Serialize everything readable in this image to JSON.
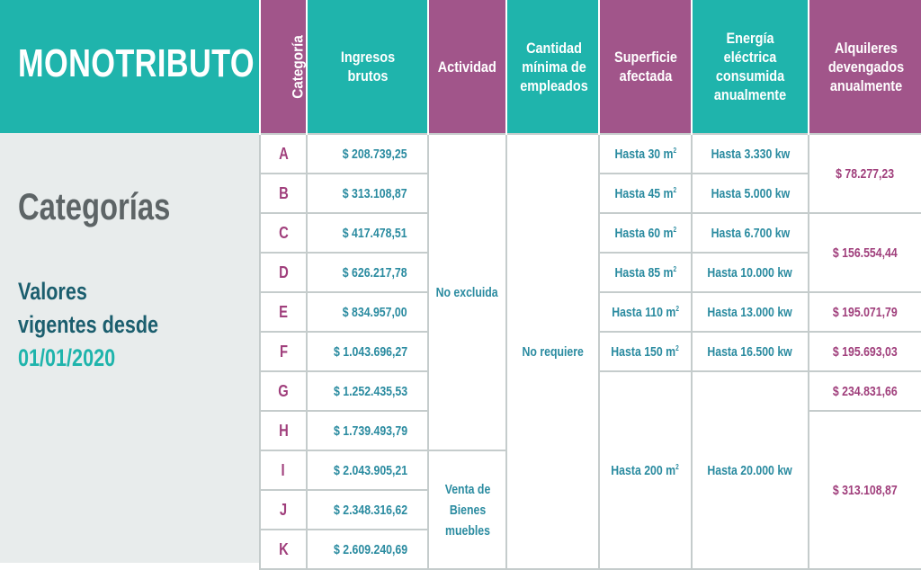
{
  "brand": "MONOTRIBUTO",
  "section_title": "Categorías",
  "validity": {
    "line1": "Valores",
    "line2": "vigentes desde",
    "date": "01/01/2020"
  },
  "colors": {
    "teal": "#1fb4ac",
    "purple": "#a1558a",
    "teal_text": "#2a8ba0",
    "purple_text": "#a03f7c"
  },
  "headers": {
    "categoria": "Categoría",
    "ingresos": "Ingresos brutos",
    "actividad": "Actividad",
    "empleados": "Cantidad mínima de empleados",
    "superficie": "Superficie afectada",
    "energia": "Energía eléctrica consumida anualmente",
    "alquileres": "Alquileres devengados anualmente"
  },
  "rows": [
    {
      "categoria": "A",
      "ingresos": "$ 208.739,25"
    },
    {
      "categoria": "B",
      "ingresos": "$ 313.108,87"
    },
    {
      "categoria": "C",
      "ingresos": "$ 417.478,51"
    },
    {
      "categoria": "D",
      "ingresos": "$ 626.217,78"
    },
    {
      "categoria": "E",
      "ingresos": "$ 834.957,00"
    },
    {
      "categoria": "F",
      "ingresos": "$ 1.043.696,27"
    },
    {
      "categoria": "G",
      "ingresos": "$ 1.252.435,53"
    },
    {
      "categoria": "H",
      "ingresos": "$ 1.739.493,79"
    },
    {
      "categoria": "I",
      "ingresos": "$ 2.043.905,21"
    },
    {
      "categoria": "J",
      "ingresos": "$ 2.348.316,62"
    },
    {
      "categoria": "K",
      "ingresos": "$ 2.609.240,69"
    }
  ],
  "actividad_groups": [
    {
      "label": "No excluida",
      "categories": [
        "A",
        "B",
        "C",
        "D",
        "E",
        "F",
        "G",
        "H"
      ]
    },
    {
      "label": "Venta de Bienes muebles",
      "categories": [
        "I",
        "J",
        "K"
      ]
    }
  ],
  "empleados_groups": [
    {
      "label": "No requiere",
      "categories": [
        "A",
        "B",
        "C",
        "D",
        "E",
        "F",
        "G",
        "H",
        "I",
        "J",
        "K"
      ]
    }
  ],
  "superficie_groups": [
    {
      "label": "Hasta 30 m²",
      "categories": [
        "A"
      ]
    },
    {
      "label": "Hasta 45 m²",
      "categories": [
        "B"
      ]
    },
    {
      "label": "Hasta 60 m²",
      "categories": [
        "C"
      ]
    },
    {
      "label": "Hasta 85 m²",
      "categories": [
        "D"
      ]
    },
    {
      "label": "Hasta 110 m²",
      "categories": [
        "E"
      ]
    },
    {
      "label": "Hasta 150 m²",
      "categories": [
        "F"
      ]
    },
    {
      "label": "Hasta 200 m²",
      "categories": [
        "G",
        "H",
        "I",
        "J",
        "K"
      ]
    }
  ],
  "energia_groups": [
    {
      "label": "Hasta 3.330 kw",
      "categories": [
        "A"
      ]
    },
    {
      "label": "Hasta 5.000 kw",
      "categories": [
        "B"
      ]
    },
    {
      "label": "Hasta 6.700 kw",
      "categories": [
        "C"
      ]
    },
    {
      "label": "Hasta 10.000 kw",
      "categories": [
        "D"
      ]
    },
    {
      "label": "Hasta 13.000 kw",
      "categories": [
        "E"
      ]
    },
    {
      "label": "Hasta 16.500 kw",
      "categories": [
        "F"
      ]
    },
    {
      "label": "Hasta 20.000 kw",
      "categories": [
        "G",
        "H",
        "I",
        "J",
        "K"
      ]
    }
  ],
  "alquileres_groups": [
    {
      "label": "$ 78.277,23",
      "categories": [
        "A",
        "B"
      ]
    },
    {
      "label": "$ 156.554,44",
      "categories": [
        "C",
        "D"
      ]
    },
    {
      "label": "$ 195.071,79",
      "categories": [
        "E"
      ]
    },
    {
      "label": "$ 195.693,03",
      "categories": [
        "F"
      ]
    },
    {
      "label": "$ 234.831,66",
      "categories": [
        "G"
      ]
    },
    {
      "label": "$ 313.108,87",
      "categories": [
        "H",
        "I",
        "J",
        "K"
      ]
    }
  ]
}
